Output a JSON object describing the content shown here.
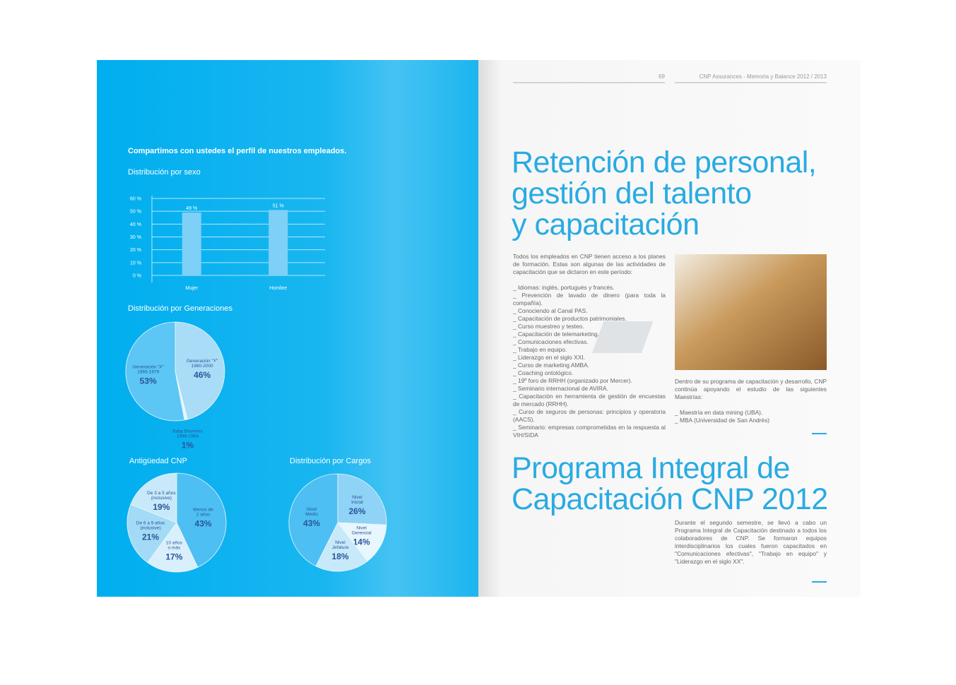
{
  "left_page": {
    "intro": "Compartimos con ustedes el perfil de nuestros empleados."
  },
  "chart_data": [
    {
      "type": "bar",
      "title": "Distribución por sexo",
      "categories": [
        "Mujer",
        "Hombre"
      ],
      "values": [
        49,
        51
      ],
      "value_labels": [
        "49 %",
        "51 %"
      ],
      "color": "#7fd0f6",
      "ylim": [
        0,
        60
      ],
      "yticks": [
        {
          "value": 0,
          "label": "0 %"
        },
        {
          "value": 10,
          "label": "10 %"
        },
        {
          "value": 20,
          "label": "20 %"
        },
        {
          "value": 30,
          "label": "30 %"
        },
        {
          "value": 40,
          "label": "40 %"
        },
        {
          "value": 50,
          "label": "50 %"
        },
        {
          "value": 60,
          "label": "60 %"
        }
      ],
      "grid": true
    },
    {
      "type": "pie",
      "title": "Distribución por Generaciones",
      "categories": [
        [
          "Generación \"Y\"",
          "1980-2000"
        ],
        [
          "Baby Boomers",
          "1946-1964"
        ],
        [
          "Generación \"X\"",
          "1965-1979"
        ]
      ],
      "values": [
        46,
        1,
        53
      ],
      "value_labels": [
        "46%",
        "1%",
        "53%"
      ],
      "colors": [
        "#a9dcf6",
        "#e6f5fd",
        "#5cc6f4"
      ]
    },
    {
      "type": "pie",
      "title": "Antigüedad CNP",
      "categories": [
        [
          "Menos de",
          "2 años"
        ],
        [
          "10 años",
          "o más"
        ],
        [
          "De 6 a 9 años",
          "(inclusive)"
        ],
        [
          "De 3 a 5 años",
          "(inclusive)"
        ]
      ],
      "values": [
        43,
        17,
        21,
        19
      ],
      "value_labels": [
        "43%",
        "17%",
        "21%",
        "19%"
      ],
      "colors": [
        "#4dbff2",
        "#d9f0fc",
        "#a3dbf6",
        "#c7e9fa"
      ]
    },
    {
      "type": "pie",
      "title": "Distribución por Cargos",
      "categories": [
        [
          "Nivel",
          "Inicial"
        ],
        [
          "Nivel",
          "Gerencial"
        ],
        [
          "Nivel",
          "Jefatura"
        ],
        [
          "Nivel",
          "Medio"
        ]
      ],
      "values": [
        26,
        14,
        18,
        43
      ],
      "value_labels": [
        "26%",
        "14%",
        "18%",
        "43%"
      ],
      "colors": [
        "#8fd3f6",
        "#e8f6fd",
        "#c7e9fa",
        "#4dbff2"
      ]
    }
  ],
  "right_page": {
    "page_number": "69",
    "running_title": "CNP Assurances - Memoria y Balance 2012 / 2013",
    "heading1": [
      "Retención de personal,",
      "gestión del talento",
      "y capacitación"
    ],
    "intro": "Todos los empleados en CNP tienen acceso a los planes de formación. Estas son algunas de las actividades de capacitación que se dictaron en este período:",
    "items": [
      "_ Idiomas: inglés, portugués y francés.",
      "_ Prevención de lavado de dinero (para toda la compañía).",
      "_ Conociendo al Canal PAS.",
      "_ Capacitación de productos patrimoniales.",
      "_ Curso muestreo y testeo.",
      "_ Capacitación de telemarketing.",
      "_ Comunicaciones efectivas.",
      "_ Trabajo en equipo.",
      "_ Liderazgo en el siglo XXI.",
      "_ Curso de marketing AMBA.",
      "_ Coaching ontológico.",
      "_ 19º foro de RRHH (organizado por Mercer).",
      "_ Seminario internacional de AVIRA.",
      "_ Capacitación en herramienta de gestión de encuestas de mercado (RRHH).",
      "_ Curso de seguros de personas: principios y operatoria (AACS).",
      "_ Seminario: empresas comprometidas en la respuesta al VIH/SIDA"
    ],
    "masters_intro": "Dentro de su programa de capacitación y desarrollo, CNP continúa apoyando el estudio de las siguientes Maestrías:",
    "masters": [
      "_ Maestría en data mining (UBA).",
      "_ MBA (Universidad de San Andrés)"
    ],
    "heading2": [
      "Programa Integral de",
      "Capacitación CNP 2012"
    ],
    "program": "Durante el segundo semestre, se llevó a cabo un Programa Integral de Capacitación destinado a todos los colaboradores de CNP. Se formaron equipos interdisciplinarios los cuales fueron capacitados en \"Comunicaciones efectivas\", \"Trabajo en equipo\" y \"Liderazgo en el siglo XX\"."
  }
}
